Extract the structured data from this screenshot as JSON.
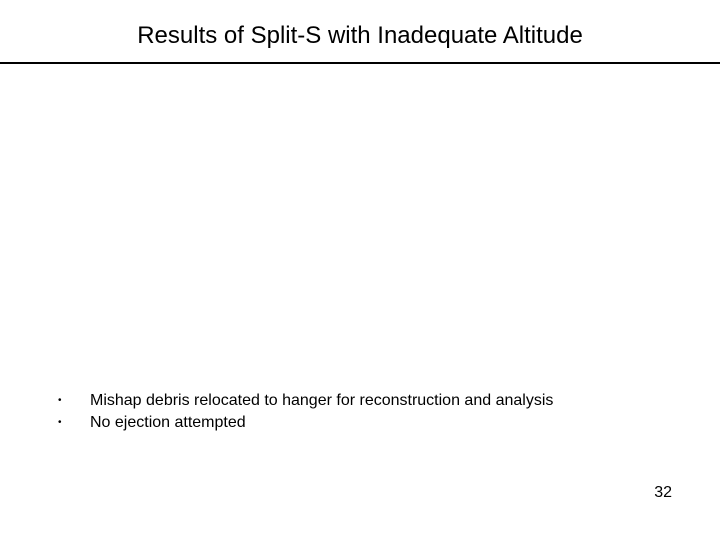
{
  "title": "Results of Split-S with Inadequate Altitude",
  "bullets": [
    {
      "text": "Mishap debris relocated to hanger for reconstruction and analysis"
    },
    {
      "text": "No ejection attempted"
    }
  ],
  "page_number": "32",
  "colors": {
    "background": "#ffffff",
    "text": "#000000",
    "divider": "#000000"
  },
  "typography": {
    "title_fontsize": 24,
    "body_fontsize": 16,
    "font_family": "Arial"
  }
}
